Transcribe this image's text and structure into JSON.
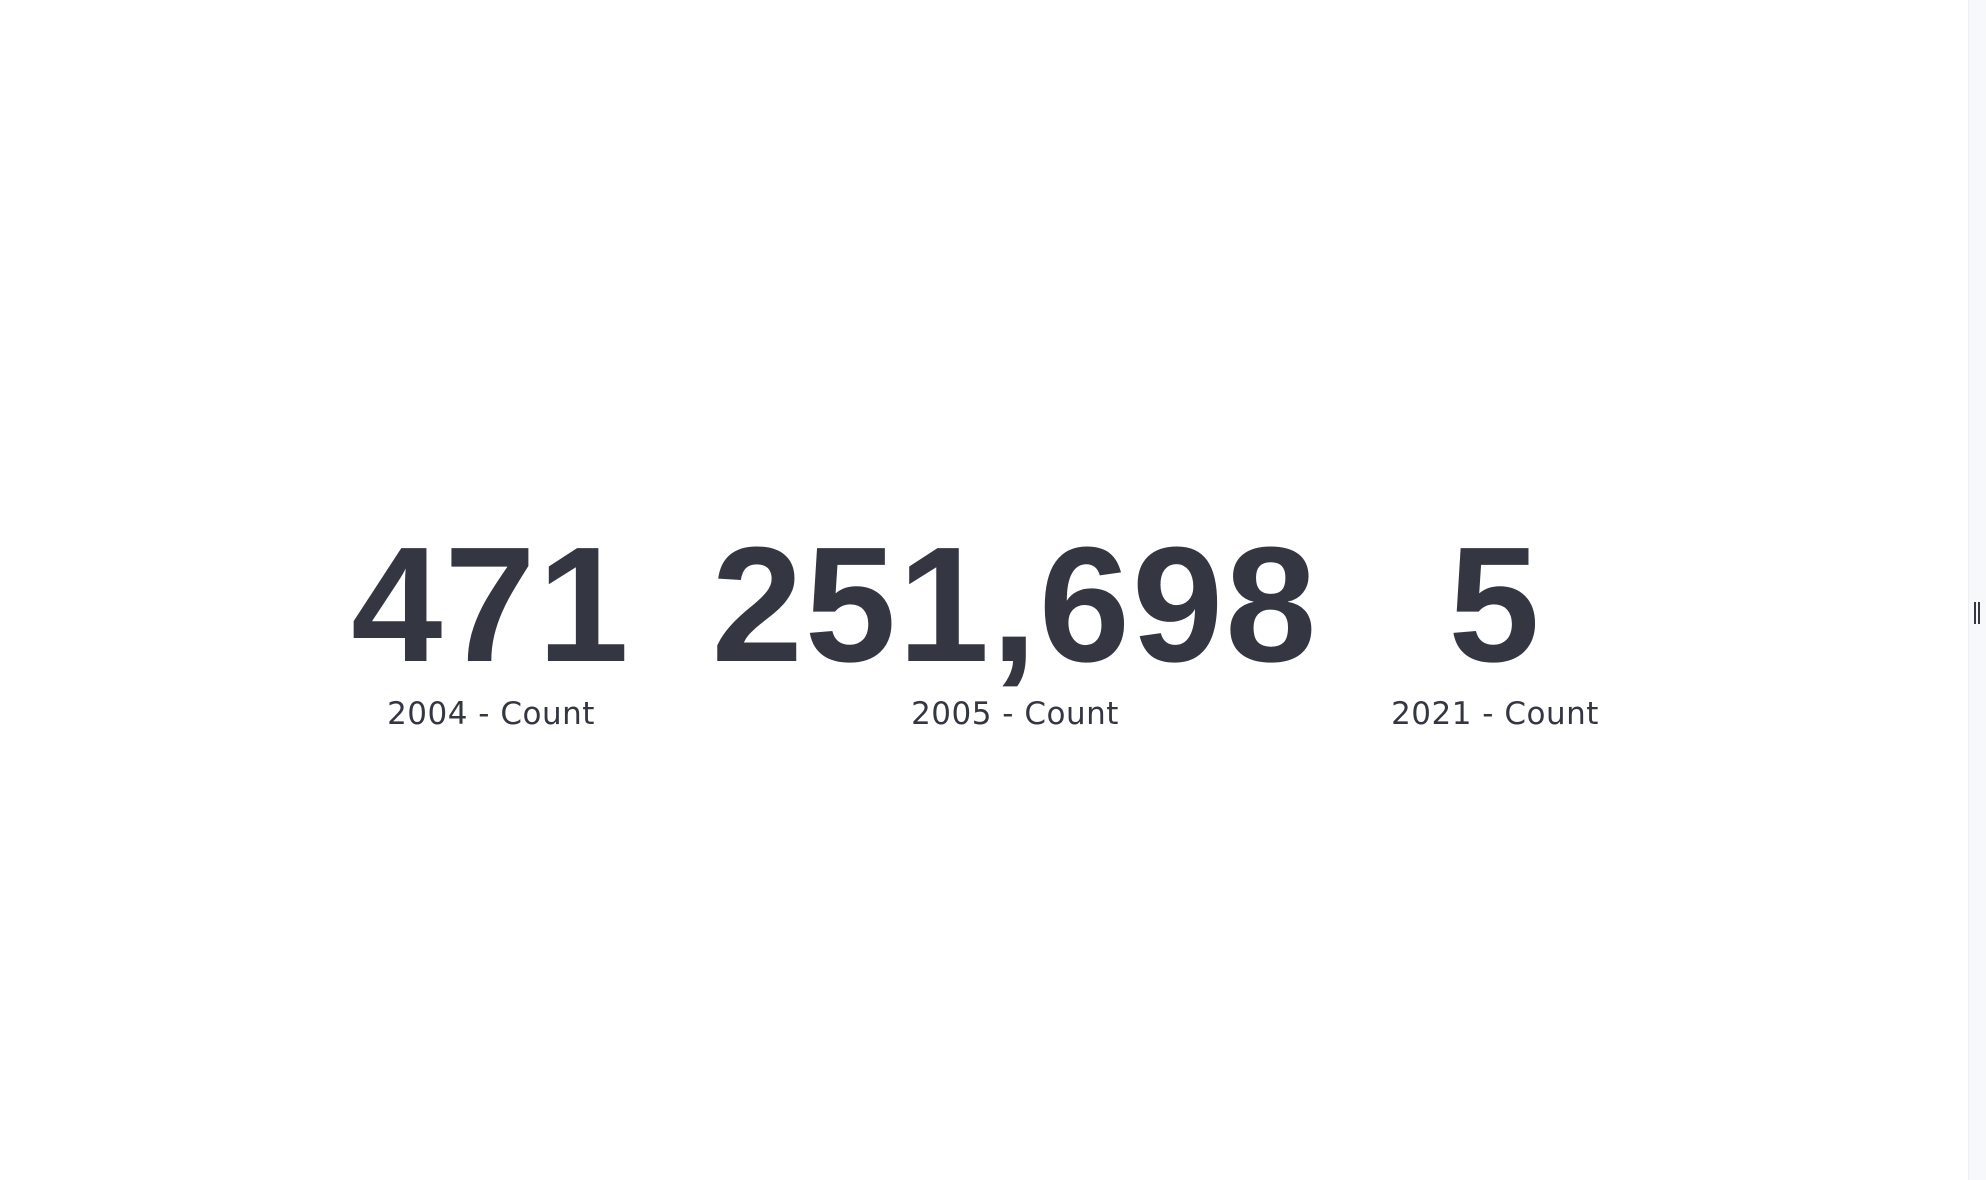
{
  "metrics": [
    {
      "value": "471",
      "label": "2004 - Count"
    },
    {
      "value": "251,698",
      "label": "2005 - Count"
    },
    {
      "value": "5",
      "label": "2021 - Count"
    }
  ],
  "colors": {
    "text": "#343741",
    "background": "#ffffff",
    "side_strip": "#f7f8fa"
  },
  "icons": {
    "resize_handle": "drag-handle-icon"
  }
}
